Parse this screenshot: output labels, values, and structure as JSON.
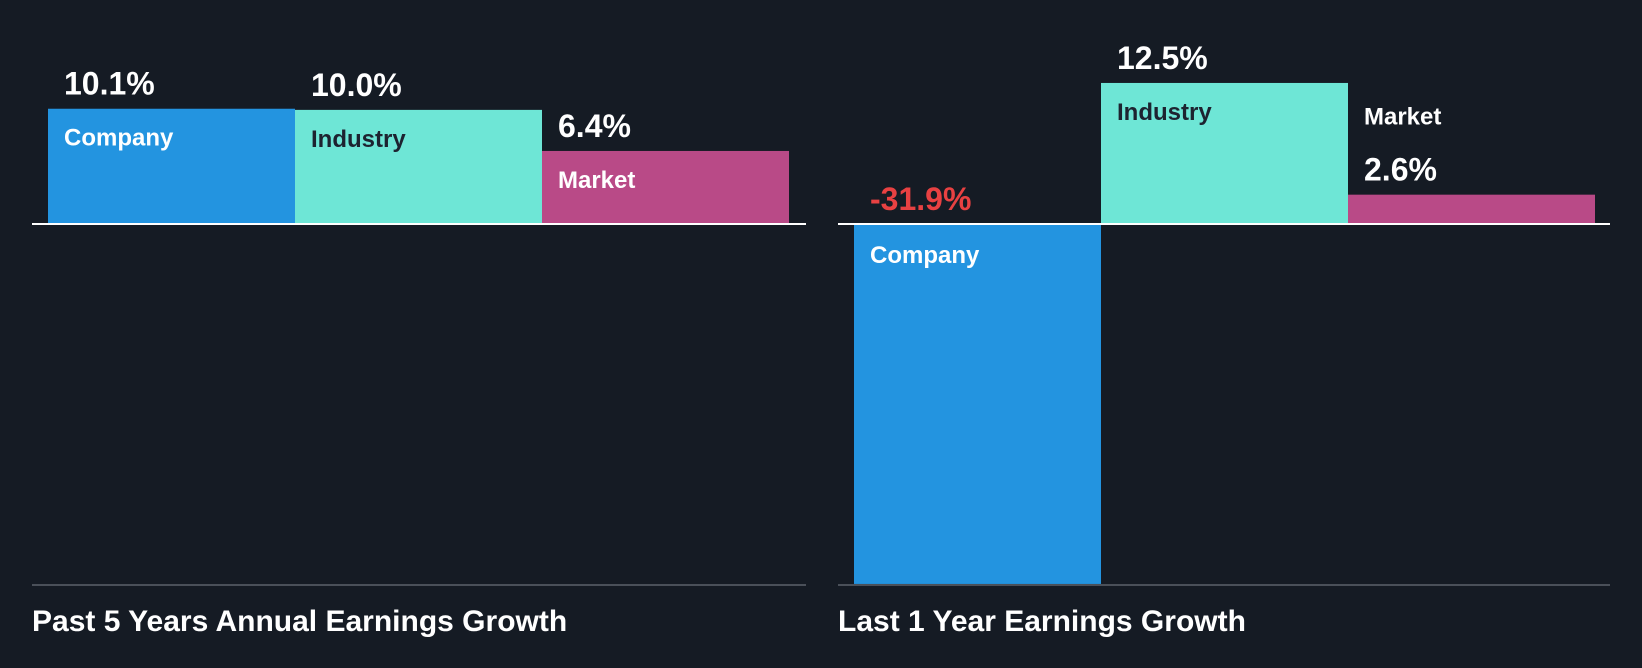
{
  "colors": {
    "background": "#151b24",
    "company": "#2394e0",
    "industry": "#6ee6d6",
    "market": "#b94a87",
    "negative_value": "#e84142",
    "baseline": "#ffffff",
    "bottom_rule": "#4a5059",
    "text_light": "#ffffff",
    "text_dark": "#1d2330"
  },
  "chart_data": [
    {
      "type": "bar",
      "title": "Past 5 Years Annual Earnings Growth",
      "categories": [
        "Company",
        "Industry",
        "Market"
      ],
      "values": [
        10.1,
        10.0,
        6.4
      ],
      "value_labels": [
        "10.1%",
        "10.0%",
        "6.4%"
      ],
      "ylim": [
        -32.8,
        11.1
      ],
      "grid": false,
      "legend": "none"
    },
    {
      "type": "bar",
      "title": "Last 1 Year Earnings Growth",
      "categories": [
        "Company",
        "Industry",
        "Market"
      ],
      "values": [
        -31.9,
        12.5,
        2.6
      ],
      "value_labels": [
        "-31.9%",
        "12.5%",
        "2.6%"
      ],
      "ylim": [
        -31.9,
        12.5
      ],
      "grid": false,
      "legend": "none"
    }
  ]
}
